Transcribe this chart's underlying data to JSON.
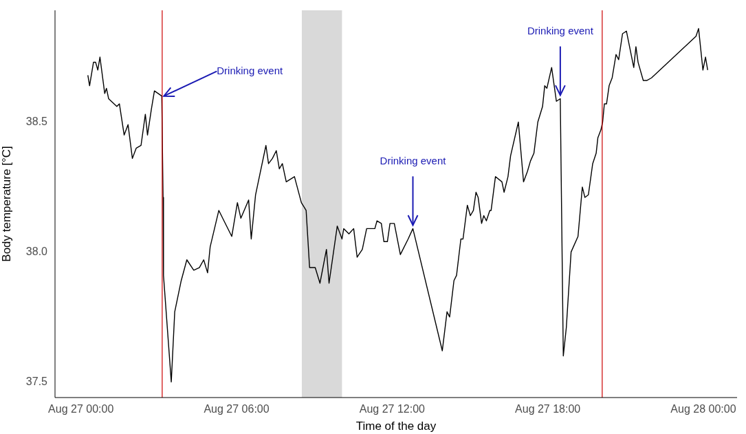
{
  "chart_data": {
    "type": "line",
    "xlabel": "Time of the day",
    "ylabel": "Body temperature [°C]",
    "xlim": [
      "--08-26T23:00",
      "--08-28T01:18"
    ],
    "ylim": [
      37.44,
      38.93
    ],
    "xticks": [
      {
        "value": "--08-27T00:00",
        "label": "Aug 27 00:00"
      },
      {
        "value": "--08-27T06:00",
        "label": "Aug 27 06:00"
      },
      {
        "value": "--08-27T12:00",
        "label": "Aug 27 12:00"
      },
      {
        "value": "--08-27T18:00",
        "label": "Aug 27 18:00"
      },
      {
        "value": "--08-28T00:00",
        "label": "Aug 28 00:00"
      }
    ],
    "yticks": [
      37.5,
      {
        "value": 38,
        "label": "38.0"
      },
      38.5
    ],
    "grid": false,
    "legend": false,
    "ref_lines": [
      {
        "axis": "x",
        "value": "--08-27T03:08",
        "color": "#cc0000"
      },
      {
        "axis": "x",
        "value": "--08-27T20:06",
        "color": "#cc0000"
      }
    ],
    "bands": [
      {
        "axis": "x",
        "from": "--08-27T08:31",
        "to": "--08-27T10:04",
        "color": "#d9d9d9"
      }
    ],
    "annotations": [
      {
        "text": "Drinking event",
        "x": "--08-27T03:07",
        "y": 38.6
      },
      {
        "text": "Drinking event",
        "x": "--08-27T12:48",
        "y": 38.09
      },
      {
        "text": "Drinking event",
        "x": "--08-27T18:29",
        "y": 38.59
      }
    ],
    "series": [
      {
        "color": "#000000",
        "x": [
          "--08-27T00:16",
          "--08-27T00:20",
          "--08-27T00:29",
          "--08-27T00:34",
          "--08-27T00:39",
          "--08-27T00:44",
          "--08-27T00:55",
          "--08-27T00:59",
          "--08-27T01:04",
          "--08-27T01:23",
          "--08-27T01:29",
          "--08-27T01:40",
          "--08-27T01:49",
          "--08-27T01:59",
          "--08-27T02:08",
          "--08-27T02:19",
          "--08-27T02:29",
          "--08-27T02:34",
          "--08-27T02:43",
          "--08-27T02:50",
          "--08-27T03:07",
          "--08-27T03:10",
          "--08-27T03:11",
          "--08-27T03:29",
          "--08-27T03:37",
          "--08-27T03:52",
          "--08-27T04:05",
          "--08-27T04:21",
          "--08-27T04:34",
          "--08-27T04:44",
          "--08-27T04:53",
          "--08-27T04:59",
          "--08-27T05:19",
          "--08-27T05:49",
          "--08-27T06:02",
          "--08-27T06:10",
          "--08-27T06:28",
          "--08-27T06:34",
          "--08-27T06:44",
          "--08-27T07:08",
          "--08-27T07:14",
          "--08-27T07:23",
          "--08-27T07:32",
          "--08-27T07:39",
          "--08-27T07:46",
          "--08-27T07:55",
          "--08-27T08:14",
          "--08-27T08:30",
          "--08-27T08:41",
          "--08-27T08:49",
          "--08-27T09:02",
          "--08-27T09:13",
          "--08-27T09:28",
          "--08-27T09:34",
          "--08-27T09:53",
          "--08-27T10:04",
          "--08-27T10:08",
          "--08-27T10:20",
          "--08-27T10:31",
          "--08-27T10:39",
          "--08-27T10:51",
          "--08-27T11:01",
          "--08-27T11:20",
          "--08-27T11:25",
          "--08-27T11:35",
          "--08-27T11:41",
          "--08-27T11:49",
          "--08-27T11:55",
          "--08-27T12:05",
          "--08-27T12:19",
          "--08-27T12:37",
          "--08-27T12:48",
          "--08-27T13:56",
          "--08-27T14:07",
          "--08-27T14:13",
          "--08-27T14:23",
          "--08-27T14:29",
          "--08-27T14:39",
          "--08-27T14:44",
          "--08-27T14:54",
          "--08-27T15:01",
          "--08-27T15:08",
          "--08-27T15:14",
          "--08-27T15:19",
          "--08-27T15:27",
          "--08-27T15:32",
          "--08-27T15:38",
          "--08-27T15:46",
          "--08-27T15:49",
          "--08-27T15:59",
          "--08-27T16:14",
          "--08-27T16:19",
          "--08-27T16:28",
          "--08-27T16:34",
          "--08-27T16:52",
          "--08-27T17:04",
          "--08-27T17:13",
          "--08-27T17:20",
          "--08-27T17:28",
          "--08-27T17:37",
          "--08-27T17:48",
          "--08-27T17:53",
          "--08-27T17:58",
          "--08-27T18:09",
          "--08-27T18:20",
          "--08-27T18:29",
          "--08-27T18:36",
          "--08-27T18:43",
          "--08-27T18:54",
          "--08-27T19:10",
          "--08-27T19:20",
          "--08-27T19:26",
          "--08-27T19:34",
          "--08-27T19:44",
          "--08-27T19:52",
          "--08-27T19:56",
          "--08-27T20:03",
          "--08-27T20:07",
          "--08-27T20:11",
          "--08-27T20:16",
          "--08-27T20:22",
          "--08-27T20:29",
          "--08-27T20:38",
          "--08-27T20:44",
          "--08-27T20:53",
          "--08-27T21:02",
          "--08-27T21:19",
          "--08-27T21:24",
          "--08-27T21:29",
          "--08-27T21:41",
          "--08-27T21:49",
          "--08-27T22:00",
          "--08-27T23:43",
          "--08-27T23:49",
          "--08-27T23:59",
          "--08-28T00:05",
          "--08-28T00:10"
        ],
        "values": [
          38.68,
          38.64,
          38.73,
          38.73,
          38.7,
          38.75,
          38.61,
          38.63,
          38.59,
          38.56,
          38.57,
          38.45,
          38.49,
          38.36,
          38.4,
          38.41,
          38.53,
          38.45,
          38.55,
          38.62,
          38.6,
          38.21,
          37.91,
          37.5,
          37.77,
          37.89,
          37.97,
          37.93,
          37.94,
          37.97,
          37.92,
          38.02,
          38.16,
          38.06,
          38.19,
          38.13,
          38.2,
          38.05,
          38.22,
          38.41,
          38.34,
          38.36,
          38.39,
          38.32,
          38.34,
          38.27,
          38.29,
          38.19,
          38.16,
          37.94,
          37.94,
          37.88,
          38.01,
          37.88,
          38.1,
          38.05,
          38.09,
          38.07,
          38.09,
          37.98,
          38.01,
          38.09,
          38.09,
          38.12,
          38.11,
          38.04,
          38.04,
          38.11,
          38.11,
          37.99,
          38.05,
          38.09,
          37.62,
          37.77,
          37.75,
          37.89,
          37.91,
          38.05,
          38.05,
          38.18,
          38.14,
          38.16,
          38.23,
          38.21,
          38.11,
          38.14,
          38.12,
          38.16,
          38.16,
          38.29,
          38.27,
          38.23,
          38.29,
          38.37,
          38.5,
          38.27,
          38.31,
          38.35,
          38.38,
          38.5,
          38.56,
          38.64,
          38.63,
          38.71,
          38.58,
          38.59,
          37.6,
          37.71,
          38.0,
          38.06,
          38.25,
          38.21,
          38.22,
          38.34,
          38.38,
          38.44,
          38.47,
          38.5,
          38.57,
          38.57,
          38.64,
          38.67,
          38.76,
          38.74,
          38.84,
          38.85,
          38.71,
          38.79,
          38.73,
          38.66,
          38.66,
          38.67,
          38.83,
          38.86,
          38.7,
          38.75,
          38.7
        ]
      }
    ]
  }
}
